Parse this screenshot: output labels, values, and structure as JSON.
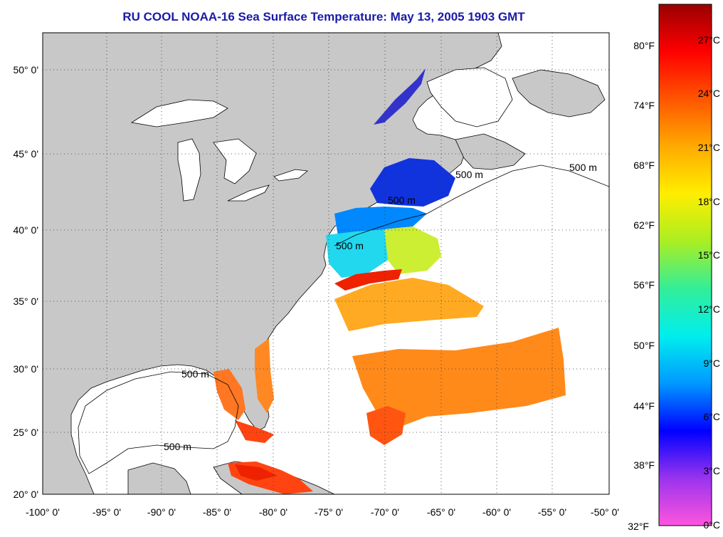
{
  "title": "RU COOL  NOAA-16  Sea Surface Temperature:  May 13, 2005 1903 GMT",
  "map": {
    "land_color": "#c8c8c8",
    "water_color": "#ffffff",
    "grid": "dotted",
    "lon_ticks": [
      "-100° 0'",
      "-95° 0'",
      "-90° 0'",
      "-85° 0'",
      "-80° 0'",
      "-75° 0'",
      "-70° 0'",
      "-65° 0'",
      "-60° 0'",
      "-55° 0'",
      "-50° 0'"
    ],
    "lat_ticks": [
      "20° 0'",
      "25° 0'",
      "30° 0'",
      "35° 0'",
      "40° 0'",
      "45° 0'",
      "50° 0'"
    ],
    "contour_labels": [
      "500 m",
      "500 m",
      "500 m",
      "500 m",
      "500 m",
      "500 m"
    ]
  },
  "colorbar": {
    "fahrenheit": [
      "80°F",
      "74°F",
      "68°F",
      "62°F",
      "56°F",
      "50°F",
      "44°F",
      "38°F",
      "32°F"
    ],
    "celsius": [
      "27°C",
      "24°C",
      "21°C",
      "18°C",
      "15°C",
      "12°C",
      "9°C",
      "6°C",
      "3°C",
      "0°C"
    ],
    "gradient": [
      "#ff55dd",
      "#9933ee",
      "#0000ff",
      "#0099ff",
      "#00eeee",
      "#33ee99",
      "#aaee22",
      "#ffee00",
      "#ffaa00",
      "#ff5500",
      "#ff0000",
      "#990000"
    ]
  }
}
